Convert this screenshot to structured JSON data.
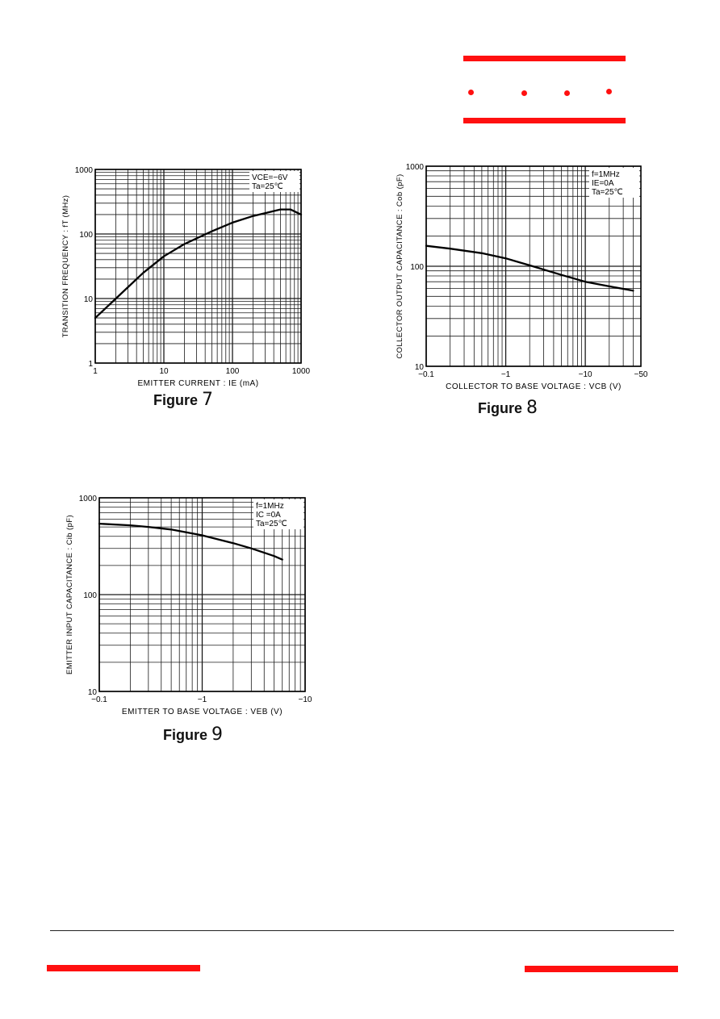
{
  "colors": {
    "accent": "#ff1010",
    "curve": "#000000",
    "grid": "#1a1a1a"
  },
  "chart_data": [
    {
      "type": "line",
      "xscale": "log",
      "yscale": "log",
      "xlim": [
        1,
        1000
      ],
      "ylim": [
        1,
        1000
      ],
      "x_tick_labels": [
        "1",
        "10",
        "100",
        "1000"
      ],
      "y_tick_labels": [
        "1",
        "10",
        "100",
        "1000"
      ],
      "xlabel": "EMITTER CURRENT : IE (mA)",
      "ylabel": "TRANSITION FREQUENCY : fT (MHz)",
      "legend": [
        "VCE=−6V",
        "Ta=25℃"
      ],
      "legend_position": "top-right",
      "caption_word": "Figure",
      "caption_num": "7",
      "grid": true,
      "series": [
        {
          "x": [
            1,
            2,
            3,
            5,
            10,
            20,
            50,
            100,
            200,
            500,
            700,
            1000
          ],
          "y": [
            5,
            10,
            15,
            25,
            45,
            70,
            110,
            150,
            190,
            240,
            240,
            200
          ]
        }
      ]
    },
    {
      "type": "line",
      "xscale": "log",
      "yscale": "log",
      "xlim": [
        0.1,
        50
      ],
      "ylim": [
        10,
        1000
      ],
      "x_tick_labels": [
        "−0.1",
        "−1",
        "−10",
        "−50"
      ],
      "y_tick_labels": [
        "10",
        "100",
        "1000"
      ],
      "xlabel": "COLLECTOR TO BASE VOLTAGE : VCB (V)",
      "ylabel": "COLLECTOR OUTPUT CAPACITANCE : Cob (pF)",
      "legend": [
        "f=1MHz",
        "IE=0A",
        "Ta=25℃"
      ],
      "legend_position": "top-right",
      "caption_word": "Figure",
      "caption_num": "8",
      "grid": true,
      "series": [
        {
          "x": [
            0.1,
            0.2,
            0.5,
            1,
            2,
            5,
            10,
            20,
            40
          ],
          "y": [
            160,
            150,
            135,
            120,
            102,
            82,
            70,
            63,
            57
          ]
        }
      ]
    },
    {
      "type": "line",
      "xscale": "log",
      "yscale": "log",
      "xlim": [
        0.1,
        10
      ],
      "ylim": [
        10,
        1000
      ],
      "x_tick_labels": [
        "−0.1",
        "−1",
        "−10"
      ],
      "y_tick_labels": [
        "10",
        "100",
        "1000"
      ],
      "xlabel": "EMITTER TO BASE VOLTAGE : VEB (V)",
      "ylabel": "EMITTER INPUT CAPACITANCE : Cib (pF)",
      "legend": [
        "f=1MHz",
        "IC =0A",
        "Ta=25℃"
      ],
      "legend_position": "top-right",
      "caption_word": "Figure",
      "caption_num": "9",
      "grid": true,
      "series": [
        {
          "x": [
            0.1,
            0.2,
            0.3,
            0.5,
            1,
            2,
            3,
            5,
            6
          ],
          "y": [
            540,
            520,
            500,
            470,
            410,
            340,
            300,
            250,
            230
          ]
        }
      ]
    }
  ]
}
